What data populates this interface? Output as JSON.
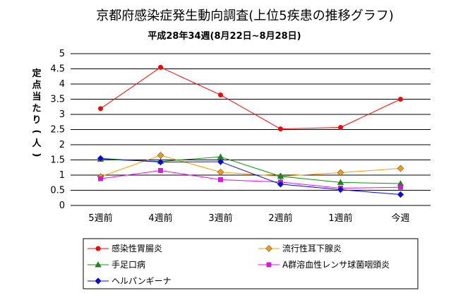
{
  "chart_data": {
    "type": "line",
    "title": "京都府感染症発生動向調査(上位5疾患の推移グラフ)",
    "subtitle": "平成28年34週(8月22日~8月28日)",
    "ylabel": "定点当たり(人)",
    "xlabel": "",
    "categories": [
      "5週前",
      "4週前",
      "3週前",
      "2週前",
      "1週前",
      "今週"
    ],
    "ylim": [
      0,
      5
    ],
    "yticks": [
      "0",
      "0.5",
      "1",
      "1.5",
      "2",
      "2.5",
      "3",
      "3.5",
      "4",
      "4.5",
      "5"
    ],
    "grid": "horizontal",
    "legend_position": "bottom",
    "series": [
      {
        "name": "感染性胃腸炎",
        "color": "#ff0000",
        "marker": "circle",
        "values": [
          3.19,
          4.55,
          3.64,
          2.52,
          2.57,
          3.5
        ]
      },
      {
        "name": "流行性耳下腺炎",
        "color": "#ff9900",
        "marker": "diamond",
        "values": [
          0.95,
          1.65,
          1.1,
          0.96,
          1.08,
          1.22
        ]
      },
      {
        "name": "手足口病",
        "color": "#009900",
        "marker": "triangle",
        "values": [
          1.52,
          1.45,
          1.6,
          0.96,
          0.76,
          0.72
        ]
      },
      {
        "name": "A群溶血性レンサ球菌咽頭炎",
        "color": "#ff00ff",
        "marker": "square",
        "values": [
          0.88,
          1.15,
          0.85,
          0.77,
          0.57,
          0.6
        ]
      },
      {
        "name": "ヘルパンギーナ",
        "color": "#0000ff",
        "marker": "diamond",
        "values": [
          1.55,
          1.43,
          1.44,
          0.7,
          0.52,
          0.36
        ]
      }
    ]
  }
}
